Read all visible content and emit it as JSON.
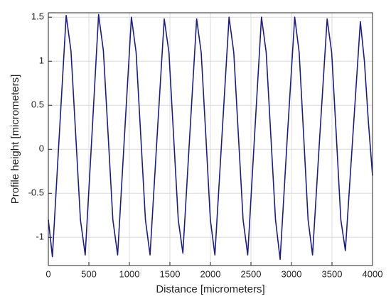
{
  "chart_data": {
    "type": "line",
    "x_label": "Distance [micrometers]",
    "y_label": "Profile height [micrometers]",
    "x": [
      0,
      50,
      135,
      220,
      279,
      338,
      396,
      455,
      538,
      620,
      679,
      738,
      796,
      855,
      940,
      1025,
      1083,
      1140,
      1198,
      1255,
      1343,
      1430,
      1488,
      1545,
      1603,
      1660,
      1745,
      1830,
      1886,
      1943,
      1999,
      2055,
      2143,
      2230,
      2288,
      2345,
      2403,
      2460,
      2545,
      2630,
      2688,
      2745,
      2803,
      2860,
      2950,
      3040,
      3095,
      3150,
      3205,
      3260,
      3350,
      3440,
      3496,
      3553,
      3609,
      3665,
      3758,
      3850,
      3900,
      3950,
      4000
    ],
    "series": [
      {
        "color": "#1c1c8c",
        "values": [
          -0.8,
          -1.22,
          0.16,
          1.52,
          1.12,
          0.16,
          -0.8,
          -1.2,
          0.16,
          1.53,
          1.12,
          0.16,
          -0.8,
          -1.2,
          0.16,
          1.5,
          1.1,
          0.16,
          -0.8,
          -1.2,
          0.16,
          1.48,
          1.1,
          0.16,
          -0.8,
          -1.18,
          0.16,
          1.48,
          1.1,
          0.16,
          -0.8,
          -1.2,
          0.16,
          1.5,
          1.1,
          0.16,
          -0.8,
          -1.2,
          0.16,
          1.5,
          1.1,
          0.16,
          -0.8,
          -1.25,
          0.16,
          1.5,
          1.1,
          0.16,
          -0.8,
          -1.2,
          0.16,
          1.48,
          1.1,
          0.16,
          -0.8,
          -1.15,
          0.16,
          1.45,
          1.0,
          0.3,
          -0.3
        ]
      }
    ],
    "xlim": [
      0,
      4000
    ],
    "xticks": [
      0,
      500,
      1000,
      1500,
      2000,
      2500,
      3000,
      3500,
      4000
    ],
    "ylim": [
      -1.32,
      1.55
    ],
    "yticks": [
      -1,
      -0.5,
      0,
      0.5,
      1,
      1.5
    ],
    "grid": true
  }
}
